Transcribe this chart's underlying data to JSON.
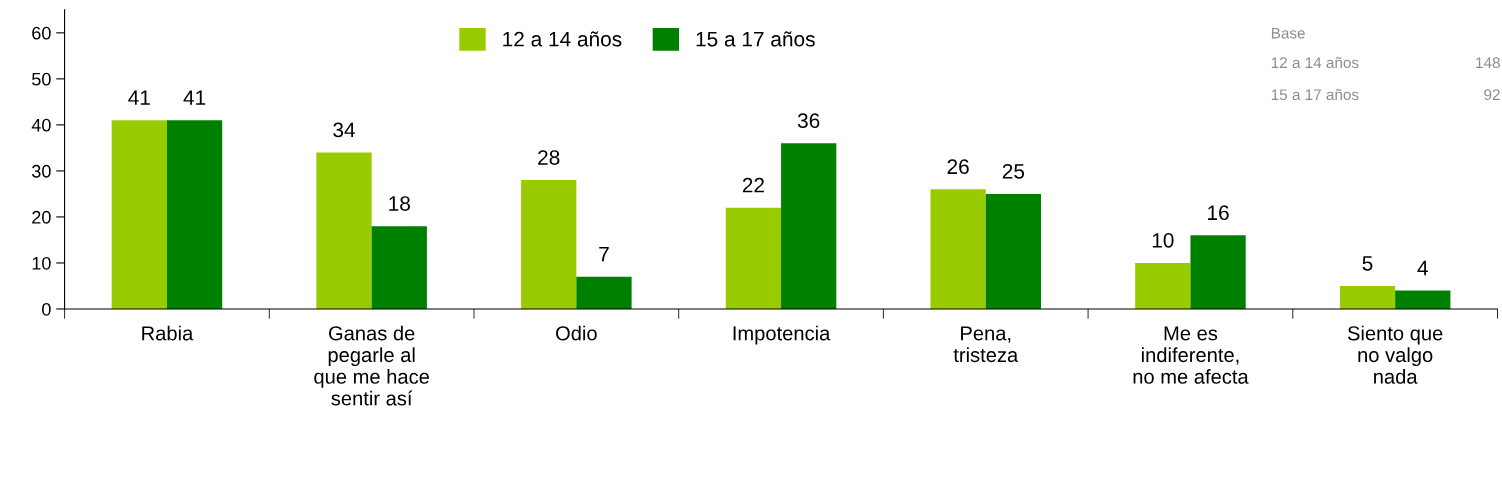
{
  "chart_data": {
    "type": "bar",
    "categories": [
      "Rabia",
      "Ganas de\npegarle al\nque me hace\nsentir así",
      "Odio",
      "Impotencia",
      "Pena,\ntristeza",
      "Me es\nindiferente,\nno me afecta",
      "Siento que\nno valgo\nnada"
    ],
    "series": [
      {
        "name": "12 a 14 años",
        "color": "#99cc00",
        "values": [
          41,
          34,
          28,
          22,
          26,
          10,
          5
        ]
      },
      {
        "name": "15 a 17 años",
        "color": "#008000",
        "values": [
          41,
          18,
          7,
          36,
          25,
          16,
          4
        ]
      }
    ],
    "ylim": [
      0,
      65
    ],
    "yticks": [
      0,
      10,
      20,
      30,
      40,
      50,
      60
    ],
    "data_labels": true,
    "grid": false,
    "legend": "top",
    "annotations": [
      "Base",
      "12 a 14 años",
      "148",
      "15 a 17 años",
      "92"
    ]
  }
}
